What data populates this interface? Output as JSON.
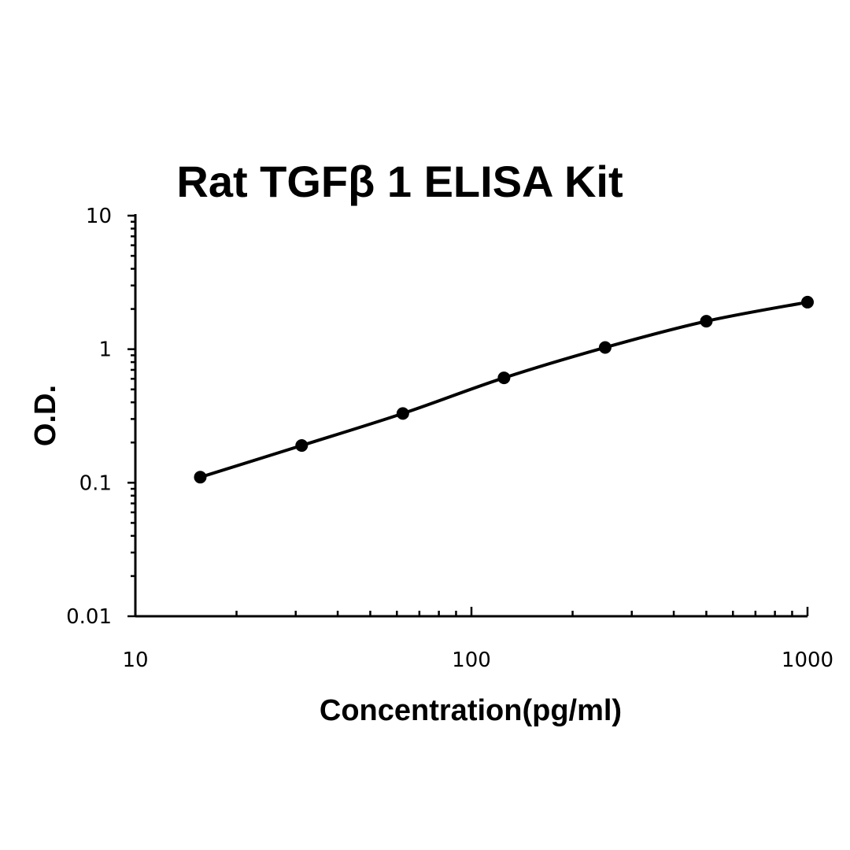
{
  "chart_data": {
    "type": "line",
    "title": "Rat TGFβ 1 ELISA Kit",
    "xlabel": "Concentration(pg/ml)",
    "ylabel": "O.D.",
    "x_scale": "log",
    "y_scale": "log",
    "xlim": [
      10,
      1000
    ],
    "ylim": [
      0.01,
      10
    ],
    "x_tick_labels": [
      "10",
      "100",
      "1000"
    ],
    "y_tick_labels": [
      "10",
      "1",
      "0.1",
      "0.01"
    ],
    "grid": false,
    "series": [
      {
        "x": [
          15.6,
          31.25,
          62.5,
          125,
          250,
          500,
          1000
        ],
        "y": [
          0.11,
          0.19,
          0.33,
          0.61,
          1.03,
          1.62,
          2.25
        ]
      }
    ],
    "colors": {
      "line": "#000000",
      "marker": "#000000"
    }
  }
}
